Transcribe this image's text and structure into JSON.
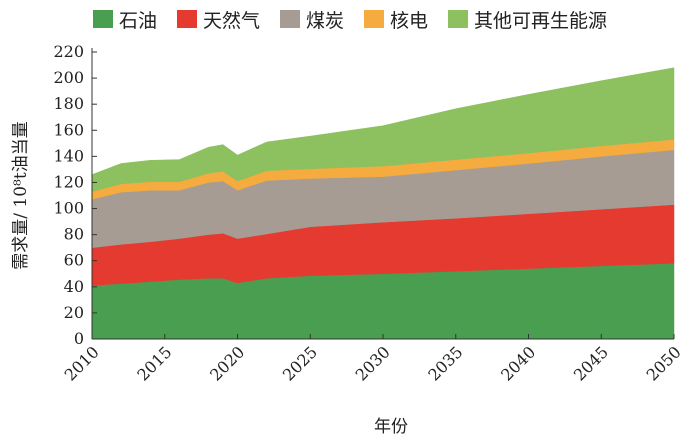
{
  "chart_data": {
    "type": "area",
    "stacked": true,
    "title": "",
    "xlabel": "年份",
    "ylabel": "需求量/ 10⁸t油当量",
    "ylim": [
      0,
      220
    ],
    "xlim": [
      2010,
      2050
    ],
    "yticks": [
      0,
      20,
      40,
      60,
      80,
      100,
      120,
      140,
      160,
      180,
      200,
      220
    ],
    "xticks": [
      2010,
      2015,
      2020,
      2025,
      2030,
      2035,
      2040,
      2045,
      2050
    ],
    "legend_position": "top",
    "x": [
      2010,
      2012,
      2014,
      2016,
      2018,
      2019,
      2020,
      2022,
      2025,
      2030,
      2035,
      2040,
      2045,
      2050
    ],
    "series": [
      {
        "name": "石油",
        "color": "#4a9e4f",
        "values": [
          41,
          42.5,
          44,
          45.5,
          46.5,
          46.5,
          43,
          46.5,
          48.5,
          50,
          52,
          54,
          56,
          58
        ]
      },
      {
        "name": "天然气",
        "color": "#e53a30",
        "values": [
          29,
          30,
          30.5,
          31.5,
          33.5,
          34.5,
          34,
          34,
          37.5,
          39.5,
          40.5,
          42,
          43.5,
          45
        ]
      },
      {
        "name": "煤炭",
        "color": "#a69c94",
        "values": [
          37,
          40,
          39.5,
          37,
          40,
          40,
          37,
          41,
          37,
          35,
          37,
          38.5,
          40.5,
          42
        ]
      },
      {
        "name": "核电",
        "color": "#f5ab3e",
        "values": [
          6,
          6.5,
          6.5,
          6.5,
          7,
          7.5,
          7,
          7.5,
          7.5,
          8,
          8,
          8,
          8,
          8
        ]
      },
      {
        "name": "其他可再生能源",
        "color": "#8dc05e",
        "values": [
          13,
          15.5,
          16.5,
          17,
          20,
          20.5,
          20,
          22,
          25,
          31,
          39,
          45,
          50,
          55
        ]
      }
    ]
  }
}
